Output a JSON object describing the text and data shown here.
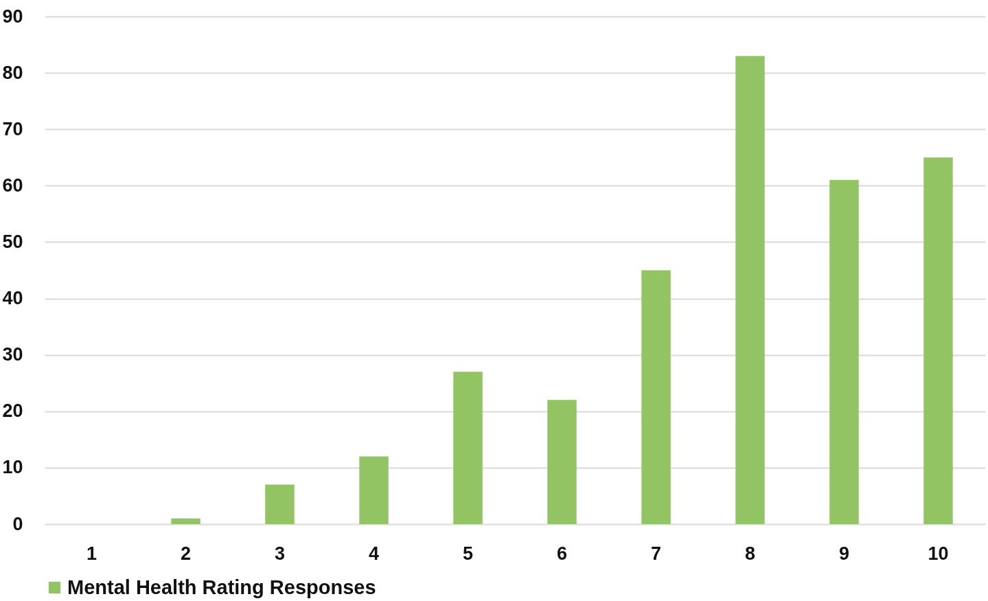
{
  "chart_data": {
    "type": "bar",
    "categories": [
      "1",
      "2",
      "3",
      "4",
      "5",
      "6",
      "7",
      "8",
      "9",
      "10"
    ],
    "series": [
      {
        "name": "Mental Health Rating Responses",
        "color": "#92c464",
        "values": [
          0,
          1,
          7,
          12,
          27,
          22,
          45,
          83,
          61,
          65
        ]
      }
    ],
    "ylim": [
      0,
      90
    ],
    "yticks": [
      0,
      10,
      20,
      30,
      40,
      50,
      60,
      70,
      80,
      90
    ],
    "grid": "y",
    "legend": "bottom"
  }
}
